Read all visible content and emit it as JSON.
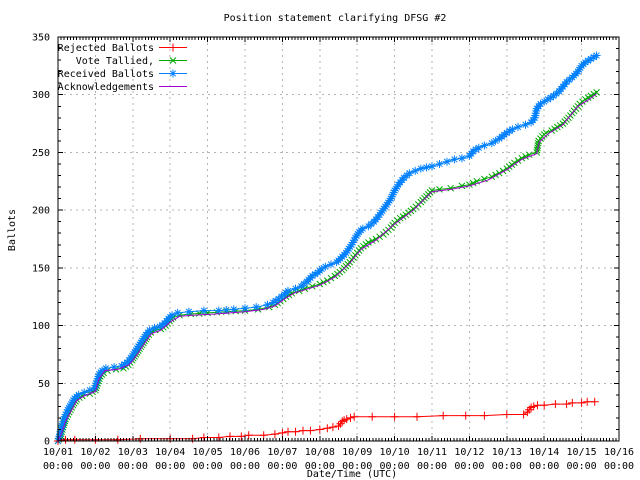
{
  "window": {
    "background": "#ffffff"
  },
  "chart_data": {
    "type": "line",
    "title": "Position statement clarifying DFSG #2",
    "xlabel": "Date/Time (UTC)",
    "ylabel": "Ballots",
    "x_unit": "days since 10/01 00:00 UTC",
    "x_tick_labels": [
      "10/01",
      "10/02",
      "10/03",
      "10/04",
      "10/05",
      "10/06",
      "10/07",
      "10/08",
      "10/09",
      "10/10",
      "10/11",
      "10/12",
      "10/13",
      "10/14",
      "10/15",
      "10/16"
    ],
    "x_tick_sublabel": "00:00",
    "xlim_days": [
      0,
      15
    ],
    "ylim": [
      0,
      350
    ],
    "y_ticks": [
      0,
      50,
      100,
      150,
      200,
      250,
      300,
      350
    ],
    "y_minor_step": 10,
    "x_minor_steps_per_day": 12,
    "grid": true,
    "grid_color": "#b4b4b4",
    "border_color": "#000000",
    "legend_position": "top-left",
    "series": [
      {
        "name": "Rejected Ballots",
        "color": "#ff0000",
        "marker": "plus",
        "points": [
          [
            0,
            0
          ],
          [
            0.2,
            1
          ],
          [
            0.45,
            1
          ],
          [
            1.0,
            1
          ],
          [
            1.6,
            1
          ],
          [
            2.2,
            2
          ],
          [
            3.0,
            2
          ],
          [
            3.6,
            2
          ],
          [
            3.9,
            3
          ],
          [
            4.3,
            3
          ],
          [
            4.6,
            4
          ],
          [
            4.9,
            4
          ],
          [
            5.1,
            5
          ],
          [
            5.5,
            5
          ],
          [
            5.8,
            6
          ],
          [
            6.0,
            7
          ],
          [
            6.15,
            8
          ],
          [
            6.35,
            8
          ],
          [
            6.55,
            9
          ],
          [
            6.75,
            9
          ],
          [
            7.0,
            10
          ],
          [
            7.2,
            11
          ],
          [
            7.35,
            12
          ],
          [
            7.5,
            13
          ],
          [
            7.55,
            15
          ],
          [
            7.6,
            17
          ],
          [
            7.65,
            18
          ],
          [
            7.72,
            19
          ],
          [
            7.82,
            20
          ],
          [
            7.92,
            21
          ],
          [
            8.4,
            21
          ],
          [
            9.0,
            21
          ],
          [
            9.6,
            21
          ],
          [
            10.3,
            22
          ],
          [
            10.9,
            22
          ],
          [
            11.4,
            22
          ],
          [
            12.0,
            23
          ],
          [
            12.45,
            23
          ],
          [
            12.55,
            25
          ],
          [
            12.6,
            27
          ],
          [
            12.65,
            29
          ],
          [
            12.72,
            30
          ],
          [
            12.82,
            31
          ],
          [
            13.0,
            31
          ],
          [
            13.3,
            32
          ],
          [
            13.6,
            32
          ],
          [
            13.75,
            33
          ],
          [
            14.0,
            33
          ],
          [
            14.15,
            34
          ],
          [
            14.35,
            34
          ]
        ]
      },
      {
        "name": "Vote Tallied,",
        "color": "#00a800",
        "marker": "cross",
        "points": [
          [
            0,
            0
          ],
          [
            0.05,
            3
          ],
          [
            0.1,
            8
          ],
          [
            0.15,
            14
          ],
          [
            0.2,
            19
          ],
          [
            0.3,
            25
          ],
          [
            0.4,
            31
          ],
          [
            0.5,
            36
          ],
          [
            0.65,
            39
          ],
          [
            0.85,
            41
          ],
          [
            1.0,
            44
          ],
          [
            1.06,
            50
          ],
          [
            1.13,
            56
          ],
          [
            1.22,
            59
          ],
          [
            1.32,
            61
          ],
          [
            1.55,
            62
          ],
          [
            1.75,
            63
          ],
          [
            1.88,
            66
          ],
          [
            1.98,
            70
          ],
          [
            2.08,
            75
          ],
          [
            2.18,
            80
          ],
          [
            2.28,
            85
          ],
          [
            2.38,
            90
          ],
          [
            2.48,
            94
          ],
          [
            2.6,
            96
          ],
          [
            2.75,
            97
          ],
          [
            2.88,
            100
          ],
          [
            2.98,
            104
          ],
          [
            3.08,
            107
          ],
          [
            3.25,
            109
          ],
          [
            3.55,
            110
          ],
          [
            4.0,
            111
          ],
          [
            4.5,
            112
          ],
          [
            5.0,
            113
          ],
          [
            5.35,
            114
          ],
          [
            5.65,
            116
          ],
          [
            5.8,
            118
          ],
          [
            5.95,
            121
          ],
          [
            6.1,
            125
          ],
          [
            6.25,
            128
          ],
          [
            6.45,
            130
          ],
          [
            6.6,
            132
          ],
          [
            6.8,
            134
          ],
          [
            7.0,
            136
          ],
          [
            7.2,
            139
          ],
          [
            7.4,
            143
          ],
          [
            7.6,
            148
          ],
          [
            7.8,
            155
          ],
          [
            7.95,
            161
          ],
          [
            8.1,
            167
          ],
          [
            8.3,
            172
          ],
          [
            8.5,
            175
          ],
          [
            8.7,
            179
          ],
          [
            8.9,
            185
          ],
          [
            9.0,
            189
          ],
          [
            9.15,
            193
          ],
          [
            9.3,
            196
          ],
          [
            9.5,
            201
          ],
          [
            9.7,
            207
          ],
          [
            9.85,
            212
          ],
          [
            10.0,
            217
          ],
          [
            10.2,
            218
          ],
          [
            10.5,
            219
          ],
          [
            10.8,
            221
          ],
          [
            11.0,
            222
          ],
          [
            11.2,
            225
          ],
          [
            11.4,
            227
          ],
          [
            11.6,
            229
          ],
          [
            11.8,
            232
          ],
          [
            12.0,
            236
          ],
          [
            12.2,
            241
          ],
          [
            12.4,
            245
          ],
          [
            12.6,
            248
          ],
          [
            12.8,
            250
          ],
          [
            12.85,
            260
          ],
          [
            12.95,
            264
          ],
          [
            13.05,
            267
          ],
          [
            13.2,
            269
          ],
          [
            13.35,
            272
          ],
          [
            13.5,
            275
          ],
          [
            13.65,
            280
          ],
          [
            13.8,
            286
          ],
          [
            13.95,
            292
          ],
          [
            14.1,
            296
          ],
          [
            14.25,
            299
          ],
          [
            14.4,
            302
          ]
        ]
      },
      {
        "name": "Received Ballots",
        "color": "#0080ff",
        "marker": "asterisk",
        "points": [
          [
            0,
            0
          ],
          [
            0.04,
            4
          ],
          [
            0.08,
            10
          ],
          [
            0.13,
            15
          ],
          [
            0.18,
            21
          ],
          [
            0.26,
            27
          ],
          [
            0.35,
            32
          ],
          [
            0.44,
            37
          ],
          [
            0.55,
            40
          ],
          [
            0.7,
            42
          ],
          [
            0.85,
            44
          ],
          [
            0.98,
            46
          ],
          [
            1.04,
            52
          ],
          [
            1.1,
            58
          ],
          [
            1.18,
            61
          ],
          [
            1.28,
            63
          ],
          [
            1.5,
            64
          ],
          [
            1.7,
            65
          ],
          [
            1.85,
            68
          ],
          [
            1.95,
            72
          ],
          [
            2.05,
            77
          ],
          [
            2.15,
            82
          ],
          [
            2.25,
            87
          ],
          [
            2.35,
            92
          ],
          [
            2.45,
            96
          ],
          [
            2.58,
            98
          ],
          [
            2.72,
            99
          ],
          [
            2.85,
            102
          ],
          [
            2.95,
            106
          ],
          [
            3.05,
            109
          ],
          [
            3.2,
            111
          ],
          [
            3.5,
            112
          ],
          [
            3.9,
            113
          ],
          [
            4.3,
            113
          ],
          [
            4.7,
            114
          ],
          [
            5.0,
            115
          ],
          [
            5.3,
            116
          ],
          [
            5.6,
            118
          ],
          [
            5.75,
            120
          ],
          [
            5.9,
            123
          ],
          [
            6.05,
            127
          ],
          [
            6.15,
            130
          ],
          [
            6.35,
            132
          ],
          [
            6.5,
            134
          ],
          [
            6.65,
            138
          ],
          [
            6.8,
            143
          ],
          [
            6.95,
            146
          ],
          [
            7.05,
            149
          ],
          [
            7.15,
            151
          ],
          [
            7.3,
            153
          ],
          [
            7.45,
            155
          ],
          [
            7.55,
            158
          ],
          [
            7.7,
            163
          ],
          [
            7.85,
            170
          ],
          [
            7.95,
            176
          ],
          [
            8.05,
            181
          ],
          [
            8.15,
            184
          ],
          [
            8.3,
            186
          ],
          [
            8.45,
            190
          ],
          [
            8.6,
            196
          ],
          [
            8.75,
            203
          ],
          [
            8.9,
            210
          ],
          [
            9.0,
            217
          ],
          [
            9.1,
            222
          ],
          [
            9.25,
            228
          ],
          [
            9.4,
            232
          ],
          [
            9.55,
            234
          ],
          [
            9.7,
            236
          ],
          [
            9.85,
            237
          ],
          [
            10.0,
            238
          ],
          [
            10.2,
            240
          ],
          [
            10.4,
            242
          ],
          [
            10.6,
            244
          ],
          [
            10.8,
            245
          ],
          [
            11.0,
            247
          ],
          [
            11.1,
            251
          ],
          [
            11.25,
            254
          ],
          [
            11.4,
            256
          ],
          [
            11.6,
            258
          ],
          [
            11.8,
            262
          ],
          [
            12.0,
            267
          ],
          [
            12.15,
            270
          ],
          [
            12.3,
            272
          ],
          [
            12.5,
            274
          ],
          [
            12.65,
            276
          ],
          [
            12.75,
            280
          ],
          [
            12.8,
            288
          ],
          [
            12.9,
            292
          ],
          [
            13.0,
            294
          ],
          [
            13.1,
            296
          ],
          [
            13.25,
            299
          ],
          [
            13.4,
            303
          ],
          [
            13.5,
            307
          ],
          [
            13.6,
            311
          ],
          [
            13.75,
            315
          ],
          [
            13.9,
            320
          ],
          [
            14.0,
            325
          ],
          [
            14.1,
            328
          ],
          [
            14.25,
            331
          ],
          [
            14.4,
            334
          ]
        ]
      },
      {
        "name": "Acknowledgements",
        "color": "#a000d0",
        "marker": "none",
        "points": [
          [
            0,
            0
          ],
          [
            0.1,
            7
          ],
          [
            0.2,
            17
          ],
          [
            0.35,
            26
          ],
          [
            0.5,
            35
          ],
          [
            0.7,
            39
          ],
          [
            1.0,
            43
          ],
          [
            1.1,
            54
          ],
          [
            1.25,
            61
          ],
          [
            1.6,
            62
          ],
          [
            1.9,
            66
          ],
          [
            2.1,
            74
          ],
          [
            2.3,
            84
          ],
          [
            2.5,
            93
          ],
          [
            2.75,
            96
          ],
          [
            3.0,
            103
          ],
          [
            3.25,
            108
          ],
          [
            3.6,
            109
          ],
          [
            4.2,
            110
          ],
          [
            5.0,
            112
          ],
          [
            5.5,
            114
          ],
          [
            5.8,
            117
          ],
          [
            6.1,
            124
          ],
          [
            6.3,
            128
          ],
          [
            6.6,
            131
          ],
          [
            7.0,
            135
          ],
          [
            7.4,
            142
          ],
          [
            7.8,
            154
          ],
          [
            8.1,
            166
          ],
          [
            8.5,
            174
          ],
          [
            9.0,
            188
          ],
          [
            9.5,
            200
          ],
          [
            10.0,
            216
          ],
          [
            10.5,
            218
          ],
          [
            11.0,
            221
          ],
          [
            11.5,
            226
          ],
          [
            12.0,
            235
          ],
          [
            12.4,
            244
          ],
          [
            12.8,
            249
          ],
          [
            12.87,
            259
          ],
          [
            13.1,
            266
          ],
          [
            13.5,
            274
          ],
          [
            13.9,
            290
          ],
          [
            14.2,
            296
          ],
          [
            14.4,
            301
          ]
        ]
      }
    ]
  }
}
